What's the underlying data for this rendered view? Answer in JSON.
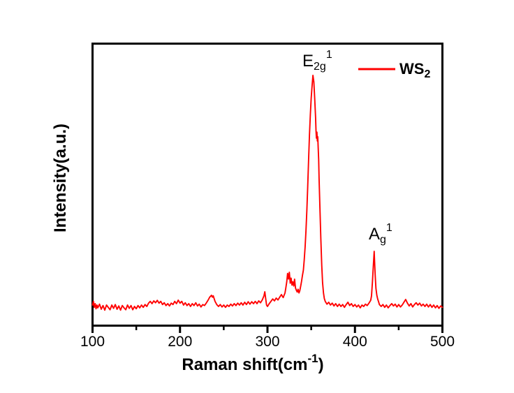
{
  "figure": {
    "background": "#ffffff"
  },
  "colors": {
    "line": "#ff0000",
    "axis": "#000000",
    "text": "#000000"
  },
  "chart_data": {
    "type": "line",
    "title": "",
    "xlabel": {
      "pre": "Raman shift(cm",
      "sup": "-1",
      "post": ")"
    },
    "ylabel": "Intensity(a.u.)",
    "xlim": [
      100,
      500
    ],
    "x_ticks": [
      100,
      200,
      300,
      400,
      500
    ],
    "x_minor_ticks": [
      150,
      250,
      350,
      450
    ],
    "y_axis": "arbitrary units (no ticks)",
    "grid": false,
    "legend": {
      "position": "top-right",
      "entries": [
        {
          "label_base": "WS",
          "label_sub": "2",
          "color": "#ff0000"
        }
      ]
    },
    "annotations": {
      "e2g": {
        "base": "E",
        "sub": "2g",
        "sup": "1",
        "peak_x": 352,
        "rel_intensity": 1.0
      },
      "ag": {
        "base": "A",
        "sub": "g",
        "sup": "1",
        "peak_x": 422,
        "rel_intensity": 0.24
      }
    },
    "series": [
      {
        "name": "WS2",
        "color": "#ff0000",
        "y_units": "normalized intensity (0 = baseline, 1 = E2g peak apex)",
        "points": [
          [
            100,
            0.012
          ],
          [
            101,
            0.028
          ],
          [
            102,
            0.002
          ],
          [
            103,
            0.018
          ],
          [
            104,
            -0.004
          ],
          [
            105,
            0.012
          ],
          [
            106,
            0.0
          ],
          [
            108,
            0.016
          ],
          [
            110,
            -0.006
          ],
          [
            112,
            0.01
          ],
          [
            114,
            -0.01
          ],
          [
            116,
            0.012
          ],
          [
            118,
            0.002
          ],
          [
            120,
            -0.008
          ],
          [
            122,
            0.012
          ],
          [
            124,
            -0.002
          ],
          [
            126,
            0.014
          ],
          [
            128,
            -0.006
          ],
          [
            130,
            0.008
          ],
          [
            132,
            -0.01
          ],
          [
            134,
            0.01
          ],
          [
            136,
            0.0
          ],
          [
            138,
            -0.008
          ],
          [
            140,
            0.012
          ],
          [
            142,
            -0.002
          ],
          [
            144,
            0.01
          ],
          [
            146,
            -0.008
          ],
          [
            148,
            0.006
          ],
          [
            150,
            -0.004
          ],
          [
            152,
            0.01
          ],
          [
            154,
            0.0
          ],
          [
            156,
            0.012
          ],
          [
            158,
            0.002
          ],
          [
            160,
            0.014
          ],
          [
            162,
            0.006
          ],
          [
            164,
            0.02
          ],
          [
            166,
            0.028
          ],
          [
            168,
            0.018
          ],
          [
            170,
            0.03
          ],
          [
            172,
            0.022
          ],
          [
            174,
            0.032
          ],
          [
            176,
            0.02
          ],
          [
            178,
            0.028
          ],
          [
            180,
            0.014
          ],
          [
            182,
            0.022
          ],
          [
            184,
            0.01
          ],
          [
            186,
            0.018
          ],
          [
            188,
            0.008
          ],
          [
            190,
            0.02
          ],
          [
            192,
            0.014
          ],
          [
            194,
            0.028
          ],
          [
            196,
            0.018
          ],
          [
            198,
            0.033
          ],
          [
            200,
            0.02
          ],
          [
            202,
            0.028
          ],
          [
            204,
            0.012
          ],
          [
            206,
            0.022
          ],
          [
            208,
            0.01
          ],
          [
            210,
            0.018
          ],
          [
            212,
            0.006
          ],
          [
            214,
            0.018
          ],
          [
            216,
            0.01
          ],
          [
            218,
            0.022
          ],
          [
            220,
            0.008
          ],
          [
            222,
            0.016
          ],
          [
            224,
            0.004
          ],
          [
            226,
            0.014
          ],
          [
            228,
            0.01
          ],
          [
            230,
            0.02
          ],
          [
            232,
            0.032
          ],
          [
            234,
            0.046
          ],
          [
            236,
            0.054
          ],
          [
            237,
            0.046
          ],
          [
            238,
            0.052
          ],
          [
            240,
            0.028
          ],
          [
            242,
            0.014
          ],
          [
            244,
            0.006
          ],
          [
            246,
            0.014
          ],
          [
            248,
            0.004
          ],
          [
            250,
            0.012
          ],
          [
            252,
            0.002
          ],
          [
            254,
            0.012
          ],
          [
            256,
            0.006
          ],
          [
            258,
            0.016
          ],
          [
            260,
            0.008
          ],
          [
            262,
            0.018
          ],
          [
            264,
            0.01
          ],
          [
            266,
            0.02
          ],
          [
            268,
            0.012
          ],
          [
            270,
            0.022
          ],
          [
            272,
            0.012
          ],
          [
            274,
            0.024
          ],
          [
            276,
            0.014
          ],
          [
            278,
            0.026
          ],
          [
            280,
            0.016
          ],
          [
            282,
            0.026
          ],
          [
            284,
            0.018
          ],
          [
            286,
            0.028
          ],
          [
            288,
            0.018
          ],
          [
            290,
            0.03
          ],
          [
            292,
            0.022
          ],
          [
            294,
            0.034
          ],
          [
            296,
            0.052
          ],
          [
            297,
            0.069
          ],
          [
            298,
            0.038
          ],
          [
            299,
            0.012
          ],
          [
            300,
            0.006
          ],
          [
            302,
            0.018
          ],
          [
            304,
            0.028
          ],
          [
            306,
            0.038
          ],
          [
            308,
            0.03
          ],
          [
            310,
            0.042
          ],
          [
            312,
            0.034
          ],
          [
            314,
            0.046
          ],
          [
            316,
            0.057
          ],
          [
            317,
            0.05
          ],
          [
            318,
            0.044
          ],
          [
            320,
            0.064
          ],
          [
            321,
            0.086
          ],
          [
            322,
            0.112
          ],
          [
            323,
            0.148
          ],
          [
            324,
            0.124
          ],
          [
            325,
            0.153
          ],
          [
            326,
            0.106
          ],
          [
            327,
            0.128
          ],
          [
            328,
            0.098
          ],
          [
            329,
            0.112
          ],
          [
            330,
            0.094
          ],
          [
            331,
            0.123
          ],
          [
            332,
            0.086
          ],
          [
            333,
            0.076
          ],
          [
            334,
            0.068
          ],
          [
            335,
            0.08
          ],
          [
            336,
            0.064
          ],
          [
            337,
            0.074
          ],
          [
            338,
            0.094
          ],
          [
            339,
            0.114
          ],
          [
            340,
            0.14
          ],
          [
            341,
            0.162
          ],
          [
            342,
            0.205
          ],
          [
            343,
            0.262
          ],
          [
            344,
            0.33
          ],
          [
            345,
            0.42
          ],
          [
            346,
            0.52
          ],
          [
            347,
            0.638
          ],
          [
            348,
            0.742
          ],
          [
            349,
            0.832
          ],
          [
            350,
            0.902
          ],
          [
            351,
            0.956
          ],
          [
            352,
            1.0
          ],
          [
            353,
            0.972
          ],
          [
            354,
            0.902
          ],
          [
            355,
            0.818
          ],
          [
            355.5,
            0.762
          ],
          [
            356,
            0.73
          ],
          [
            356.5,
            0.756
          ],
          [
            357,
            0.718
          ],
          [
            357.5,
            0.736
          ],
          [
            358,
            0.69
          ],
          [
            358.5,
            0.638
          ],
          [
            359,
            0.556
          ],
          [
            360,
            0.43
          ],
          [
            361,
            0.298
          ],
          [
            362,
            0.184
          ],
          [
            363,
            0.108
          ],
          [
            364,
            0.064
          ],
          [
            365,
            0.04
          ],
          [
            366,
            0.028
          ],
          [
            368,
            0.016
          ],
          [
            370,
            0.024
          ],
          [
            372,
            0.012
          ],
          [
            374,
            0.02
          ],
          [
            376,
            0.008
          ],
          [
            378,
            0.018
          ],
          [
            380,
            0.006
          ],
          [
            382,
            0.016
          ],
          [
            384,
            0.006
          ],
          [
            386,
            0.014
          ],
          [
            388,
            0.002
          ],
          [
            390,
            0.014
          ],
          [
            392,
            0.024
          ],
          [
            394,
            0.01
          ],
          [
            396,
            0.018
          ],
          [
            398,
            0.006
          ],
          [
            400,
            0.014
          ],
          [
            402,
            0.004
          ],
          [
            404,
            0.012
          ],
          [
            406,
            0.0
          ],
          [
            408,
            0.012
          ],
          [
            410,
            0.006
          ],
          [
            412,
            0.016
          ],
          [
            414,
            0.01
          ],
          [
            416,
            0.02
          ],
          [
            418,
            0.032
          ],
          [
            419,
            0.052
          ],
          [
            420,
            0.112
          ],
          [
            421,
            0.182
          ],
          [
            422,
            0.243
          ],
          [
            422.5,
            0.198
          ],
          [
            423,
            0.148
          ],
          [
            424,
            0.084
          ],
          [
            425,
            0.054
          ],
          [
            426,
            0.038
          ],
          [
            427,
            0.026
          ],
          [
            428,
            0.014
          ],
          [
            430,
            0.006
          ],
          [
            432,
            0.014
          ],
          [
            434,
            0.002
          ],
          [
            436,
            0.012
          ],
          [
            438,
            0.0
          ],
          [
            440,
            0.01
          ],
          [
            442,
            0.018
          ],
          [
            444,
            0.008
          ],
          [
            446,
            0.016
          ],
          [
            448,
            0.004
          ],
          [
            450,
            0.014
          ],
          [
            452,
            0.004
          ],
          [
            454,
            0.012
          ],
          [
            456,
            0.024
          ],
          [
            458,
            0.036
          ],
          [
            460,
            0.02
          ],
          [
            462,
            0.008
          ],
          [
            464,
            0.018
          ],
          [
            466,
            0.004
          ],
          [
            468,
            0.014
          ],
          [
            470,
            0.022
          ],
          [
            472,
            0.012
          ],
          [
            474,
            0.02
          ],
          [
            476,
            0.008
          ],
          [
            478,
            0.016
          ],
          [
            480,
            0.006
          ],
          [
            482,
            0.016
          ],
          [
            484,
            0.004
          ],
          [
            486,
            0.014
          ],
          [
            488,
            0.002
          ],
          [
            490,
            0.012
          ],
          [
            492,
            0.0
          ],
          [
            494,
            0.01
          ],
          [
            496,
            -0.002
          ],
          [
            498,
            0.008
          ],
          [
            500,
            0.002
          ]
        ]
      }
    ]
  }
}
